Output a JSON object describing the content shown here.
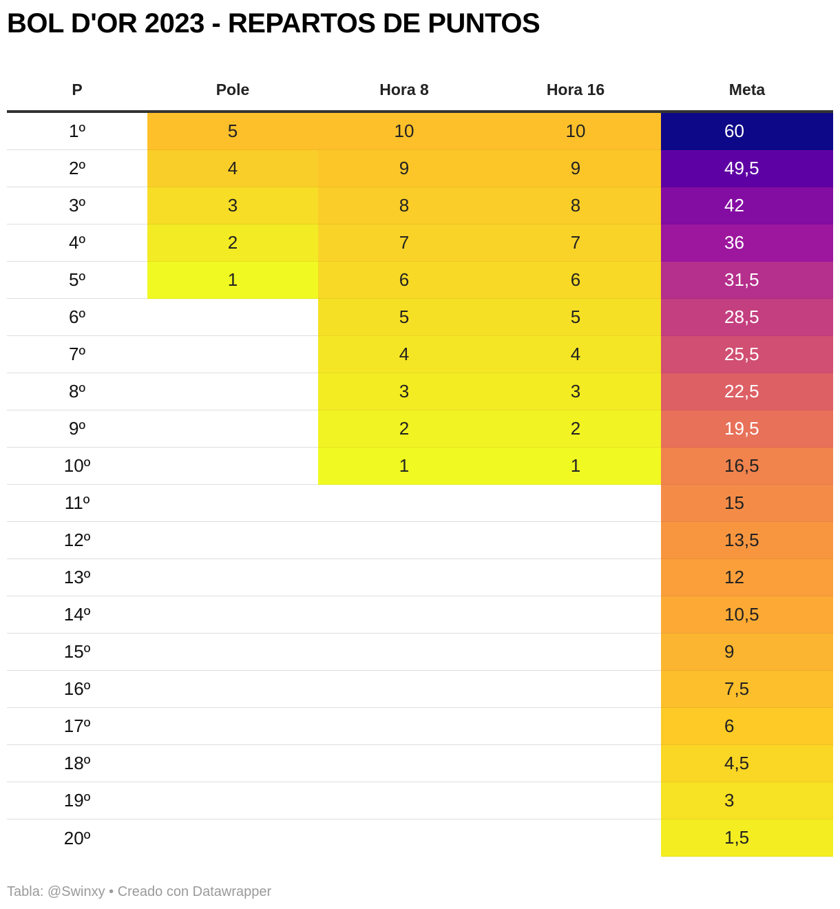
{
  "chart_data": {
    "type": "table",
    "title": "BOL D'OR 2023 - REPARTOS DE PUNTOS",
    "columns": [
      "P",
      "Pole",
      "Hora 8",
      "Hora 16",
      "Meta"
    ],
    "rows": [
      [
        "1º",
        "5",
        "10",
        "10",
        "60"
      ],
      [
        "2º",
        "4",
        "9",
        "9",
        "49,5"
      ],
      [
        "3º",
        "3",
        "8",
        "8",
        "42"
      ],
      [
        "4º",
        "2",
        "7",
        "7",
        "36"
      ],
      [
        "5º",
        "1",
        "6",
        "6",
        "31,5"
      ],
      [
        "6º",
        "",
        "5",
        "5",
        "28,5"
      ],
      [
        "7º",
        "",
        "4",
        "4",
        "25,5"
      ],
      [
        "8º",
        "",
        "3",
        "3",
        "22,5"
      ],
      [
        "9º",
        "",
        "2",
        "2",
        "19,5"
      ],
      [
        "10º",
        "",
        "1",
        "1",
        "16,5"
      ],
      [
        "11º",
        "",
        "",
        "",
        "15"
      ],
      [
        "12º",
        "",
        "",
        "",
        "13,5"
      ],
      [
        "13º",
        "",
        "",
        "",
        "12"
      ],
      [
        "14º",
        "",
        "",
        "",
        "10,5"
      ],
      [
        "15º",
        "",
        "",
        "",
        "9"
      ],
      [
        "16º",
        "",
        "",
        "",
        "7,5"
      ],
      [
        "17º",
        "",
        "",
        "",
        "6"
      ],
      [
        "18º",
        "",
        "",
        "",
        "4,5"
      ],
      [
        "19º",
        "",
        "",
        "",
        "3"
      ],
      [
        "20º",
        "",
        "",
        "",
        "1,5"
      ]
    ],
    "color_scale": {
      "name": "plasma",
      "stops": [
        {
          "t": 0.0,
          "color": "#f0f921"
        },
        {
          "t": 0.1,
          "color": "#fdca26"
        },
        {
          "t": 0.2,
          "color": "#fb9f3a"
        },
        {
          "t": 0.3,
          "color": "#ed7953"
        },
        {
          "t": 0.4,
          "color": "#d8576b"
        },
        {
          "t": 0.5,
          "color": "#bd3786"
        },
        {
          "t": 0.6,
          "color": "#9c179e"
        },
        {
          "t": 0.8,
          "color": "#6a00a8"
        },
        {
          "t": 1.0,
          "color": "#0d0887"
        }
      ],
      "small_scale_stops": [
        {
          "t": 0.0,
          "color": "#f0f921"
        },
        {
          "t": 1.0,
          "color": "#fdc02a"
        }
      ]
    }
  },
  "footer": "Tabla: @Swinxy • Creado con Datawrapper"
}
